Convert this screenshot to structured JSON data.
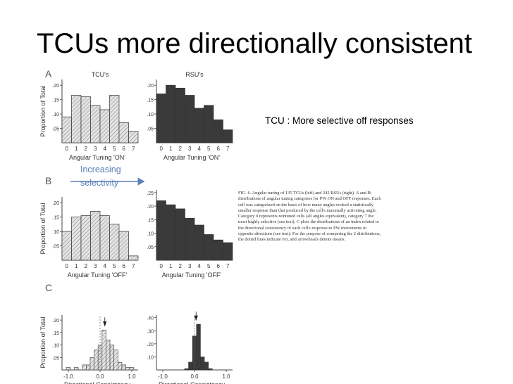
{
  "slide": {
    "title": "TCUs more directionally consistent",
    "note": "TCU : More selective off responses",
    "arrow_label_line1": "Increasing",
    "arrow_label_line2": "selectivity",
    "caption": "FIG. 6. Angular tuning of 135 TCUs (left) and 242 RSUs (right). A and B: distributions of angular tuning categories for PW ON and OFF responses. Each cell was categorized on the basis of how many angles evoked a statistically smaller response than that produced by the cell's maximally activating angle. Category 0 represents nontuned cells (all angles equivalent), category 7 the most highly selective (see text). C plots the distributions of an index related to the directional consistency of each cell's response to PW movements in opposite directions (see text). For the purpose of comparing the 2 distributions, the dotted lines indicate 0.0, and arrowheads denote means."
  },
  "colors": {
    "hatch_bar": "#d6d6d6",
    "dark_bar": "#3a3a3a",
    "arrow": "#5b7fb8",
    "text_blue": "#5b7fb8"
  },
  "chart_data": [
    {
      "type": "bar",
      "panel": "A",
      "title": "TCU's",
      "xlabel": "Angular Tuning 'ON'",
      "ylabel": "Proportion of Total",
      "categories": [
        "0",
        "1",
        "2",
        "3",
        "4",
        "5",
        "6",
        "7"
      ],
      "values": [
        0.09,
        0.165,
        0.16,
        0.13,
        0.115,
        0.165,
        0.07,
        0.04
      ],
      "yticks": [
        ".05",
        ".10",
        ".15",
        ".20"
      ],
      "ylim": [
        0,
        0.22
      ],
      "style": "hatched"
    },
    {
      "type": "bar",
      "panel": "A",
      "title": "RSU's",
      "xlabel": "Angular Tuning 'ON'",
      "categories": [
        "0",
        "1",
        "2",
        "3",
        "4",
        "5",
        "6",
        "7"
      ],
      "values": [
        0.17,
        0.2,
        0.19,
        0.165,
        0.12,
        0.13,
        0.08,
        0.045
      ],
      "yticks": [
        ".05",
        ".10",
        ".15",
        ".20"
      ],
      "ylim": [
        0,
        0.22
      ],
      "style": "dark"
    },
    {
      "type": "bar",
      "panel": "B",
      "xlabel": "Angular Tuning 'OFF'",
      "ylabel": "Proportion of Total",
      "categories": [
        "0",
        "1",
        "2",
        "3",
        "4",
        "5",
        "6",
        "7"
      ],
      "values": [
        0.1,
        0.15,
        0.155,
        0.17,
        0.155,
        0.125,
        0.1,
        0.015
      ],
      "yticks": [
        ".05",
        ".10",
        ".15",
        ".20"
      ],
      "ylim": [
        0,
        0.22
      ],
      "style": "hatched"
    },
    {
      "type": "bar",
      "panel": "B",
      "xlabel": "Angular Tuning 'OFF'",
      "categories": [
        "0",
        "1",
        "2",
        "3",
        "4",
        "5",
        "6",
        "7"
      ],
      "values": [
        0.22,
        0.205,
        0.19,
        0.155,
        0.13,
        0.095,
        0.075,
        0.065
      ],
      "yticks": [
        ".05",
        ".10",
        ".15",
        ".20",
        ".25"
      ],
      "ylim": [
        0,
        0.26
      ],
      "style": "dark"
    },
    {
      "type": "bar",
      "panel": "C",
      "xlabel": "Directional Consistency",
      "ylabel": "Proportion of Total",
      "x": [
        -1.0,
        -0.875,
        -0.75,
        -0.625,
        -0.5,
        -0.375,
        -0.25,
        -0.125,
        0.0,
        0.125,
        0.25,
        0.375,
        0.5,
        0.625,
        0.75,
        0.875,
        1.0
      ],
      "values": [
        0.01,
        0.0,
        0.01,
        0.0,
        0.02,
        0.02,
        0.05,
        0.08,
        0.1,
        0.16,
        0.12,
        0.1,
        0.08,
        0.03,
        0.02,
        0.01,
        0.01
      ],
      "xticks": [
        "-1.0",
        "0.0",
        "1.0"
      ],
      "yticks": [
        ".05",
        ".10",
        ".15",
        ".20"
      ],
      "ylim": [
        0,
        0.22
      ],
      "style": "hatched",
      "mean": 0.15
    },
    {
      "type": "bar",
      "panel": "C",
      "xlabel": "Directional Consistency",
      "x": [
        -1.0,
        -0.875,
        -0.75,
        -0.625,
        -0.5,
        -0.375,
        -0.25,
        -0.125,
        0.0,
        0.125,
        0.25,
        0.375,
        0.5,
        0.625,
        0.75,
        0.875,
        1.0
      ],
      "values": [
        0.0,
        0.0,
        0.0,
        0.0,
        0.0,
        0.0,
        0.01,
        0.06,
        0.26,
        0.35,
        0.1,
        0.06,
        0.01,
        0.0,
        0.0,
        0.0,
        0.0
      ],
      "xticks": [
        "-1.0",
        "0.0",
        "1.0"
      ],
      "yticks": [
        ".10",
        ".20",
        ".30",
        ".40"
      ],
      "ylim": [
        0,
        0.42
      ],
      "style": "dark",
      "mean": 0.05
    }
  ],
  "panel_letters": [
    "A",
    "B",
    "C"
  ]
}
